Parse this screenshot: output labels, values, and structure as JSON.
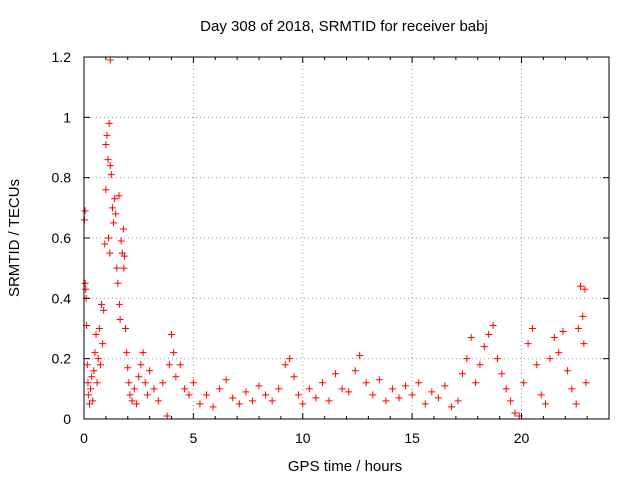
{
  "chart_data": {
    "type": "scatter",
    "title": "Day 308 of 2018, SRMTID for receiver babj",
    "xlabel": "GPS time / hours",
    "ylabel": "SRMTID / TECUs",
    "xlim": [
      0,
      24
    ],
    "ylim": [
      0,
      1.2
    ],
    "x_ticks": [
      0,
      5,
      10,
      15,
      20
    ],
    "x_tick_labels": [
      "0",
      "5",
      "10",
      "15",
      "20"
    ],
    "y_ticks": [
      0,
      0.2,
      0.4,
      0.6,
      0.8,
      1,
      1.2
    ],
    "y_tick_labels": [
      "0",
      "0.2",
      "0.4",
      "0.6",
      "0.8",
      "1",
      "1.2"
    ],
    "grid": true,
    "marker": "plus",
    "color": "#ff0000",
    "series": [
      {
        "name": "SRMTID",
        "points": [
          [
            0.02,
            0.66
          ],
          [
            0.05,
            0.69
          ],
          [
            0.05,
            0.45
          ],
          [
            0.08,
            0.43
          ],
          [
            0.1,
            0.4
          ],
          [
            0.12,
            0.31
          ],
          [
            0.15,
            0.18
          ],
          [
            0.18,
            0.12
          ],
          [
            0.2,
            0.08
          ],
          [
            0.25,
            0.05
          ],
          [
            0.3,
            0.1
          ],
          [
            0.35,
            0.14
          ],
          [
            0.4,
            0.06
          ],
          [
            0.45,
            0.16
          ],
          [
            0.5,
            0.22
          ],
          [
            0.55,
            0.28
          ],
          [
            0.6,
            0.12
          ],
          [
            0.65,
            0.2
          ],
          [
            0.7,
            0.3
          ],
          [
            0.75,
            0.18
          ],
          [
            0.8,
            0.38
          ],
          [
            0.85,
            0.25
          ],
          [
            0.9,
            0.36
          ],
          [
            0.95,
            0.58
          ],
          [
            1.0,
            0.76
          ],
          [
            1.0,
            0.91
          ],
          [
            1.05,
            0.94
          ],
          [
            1.1,
            0.86
          ],
          [
            1.12,
            0.6
          ],
          [
            1.15,
            0.98
          ],
          [
            1.18,
            0.55
          ],
          [
            1.2,
            0.84
          ],
          [
            1.2,
            1.19
          ],
          [
            1.25,
            0.81
          ],
          [
            1.3,
            0.7
          ],
          [
            1.35,
            0.65
          ],
          [
            1.4,
            0.73
          ],
          [
            1.45,
            0.68
          ],
          [
            1.5,
            0.5
          ],
          [
            1.55,
            0.45
          ],
          [
            1.6,
            0.74
          ],
          [
            1.62,
            0.38
          ],
          [
            1.65,
            0.33
          ],
          [
            1.7,
            0.59
          ],
          [
            1.75,
            0.55
          ],
          [
            1.8,
            0.63
          ],
          [
            1.82,
            0.5
          ],
          [
            1.85,
            0.54
          ],
          [
            1.9,
            0.3
          ],
          [
            1.95,
            0.22
          ],
          [
            2.0,
            0.17
          ],
          [
            2.05,
            0.12
          ],
          [
            2.1,
            0.08
          ],
          [
            2.2,
            0.06
          ],
          [
            2.3,
            0.1
          ],
          [
            2.4,
            0.05
          ],
          [
            2.5,
            0.14
          ],
          [
            2.6,
            0.18
          ],
          [
            2.7,
            0.22
          ],
          [
            2.8,
            0.12
          ],
          [
            2.9,
            0.08
          ],
          [
            3.0,
            0.16
          ],
          [
            3.2,
            0.1
          ],
          [
            3.4,
            0.06
          ],
          [
            3.6,
            0.12
          ],
          [
            3.8,
            0.01
          ],
          [
            3.9,
            0.18
          ],
          [
            4.0,
            0.28
          ],
          [
            4.1,
            0.22
          ],
          [
            4.2,
            0.14
          ],
          [
            4.4,
            0.18
          ],
          [
            4.6,
            0.1
          ],
          [
            4.8,
            0.08
          ],
          [
            5.0,
            0.12
          ],
          [
            5.3,
            0.05
          ],
          [
            5.6,
            0.08
          ],
          [
            5.9,
            0.04
          ],
          [
            6.2,
            0.1
          ],
          [
            6.5,
            0.13
          ],
          [
            6.8,
            0.07
          ],
          [
            7.1,
            0.05
          ],
          [
            7.4,
            0.09
          ],
          [
            7.7,
            0.06
          ],
          [
            8.0,
            0.11
          ],
          [
            8.3,
            0.08
          ],
          [
            8.6,
            0.06
          ],
          [
            8.9,
            0.1
          ],
          [
            9.2,
            0.18
          ],
          [
            9.4,
            0.2
          ],
          [
            9.6,
            0.14
          ],
          [
            9.8,
            0.08
          ],
          [
            10.0,
            0.05
          ],
          [
            10.3,
            0.1
          ],
          [
            10.6,
            0.07
          ],
          [
            10.9,
            0.12
          ],
          [
            11.2,
            0.06
          ],
          [
            11.5,
            0.15
          ],
          [
            11.8,
            0.1
          ],
          [
            12.1,
            0.09
          ],
          [
            12.4,
            0.16
          ],
          [
            12.6,
            0.21
          ],
          [
            12.9,
            0.12
          ],
          [
            13.2,
            0.08
          ],
          [
            13.5,
            0.13
          ],
          [
            13.8,
            0.06
          ],
          [
            14.1,
            0.1
          ],
          [
            14.4,
            0.07
          ],
          [
            14.7,
            0.11
          ],
          [
            15.0,
            0.08
          ],
          [
            15.3,
            0.12
          ],
          [
            15.6,
            0.05
          ],
          [
            15.9,
            0.09
          ],
          [
            16.2,
            0.07
          ],
          [
            16.5,
            0.11
          ],
          [
            16.8,
            0.04
          ],
          [
            17.1,
            0.06
          ],
          [
            17.3,
            0.15
          ],
          [
            17.5,
            0.2
          ],
          [
            17.7,
            0.27
          ],
          [
            17.9,
            0.12
          ],
          [
            18.1,
            0.18
          ],
          [
            18.3,
            0.24
          ],
          [
            18.5,
            0.28
          ],
          [
            18.7,
            0.31
          ],
          [
            18.9,
            0.2
          ],
          [
            19.1,
            0.15
          ],
          [
            19.3,
            0.1
          ],
          [
            19.5,
            0.06
          ],
          [
            19.7,
            0.02
          ],
          [
            19.9,
            0.01
          ],
          [
            20.1,
            0.12
          ],
          [
            20.3,
            0.25
          ],
          [
            20.5,
            0.3
          ],
          [
            20.7,
            0.18
          ],
          [
            20.9,
            0.08
          ],
          [
            21.1,
            0.05
          ],
          [
            21.3,
            0.2
          ],
          [
            21.5,
            0.27
          ],
          [
            21.7,
            0.22
          ],
          [
            21.9,
            0.29
          ],
          [
            22.1,
            0.16
          ],
          [
            22.3,
            0.1
          ],
          [
            22.5,
            0.05
          ],
          [
            22.6,
            0.3
          ],
          [
            22.7,
            0.44
          ],
          [
            22.8,
            0.34
          ],
          [
            22.85,
            0.25
          ],
          [
            22.9,
            0.43
          ],
          [
            22.95,
            0.12
          ]
        ]
      }
    ]
  }
}
